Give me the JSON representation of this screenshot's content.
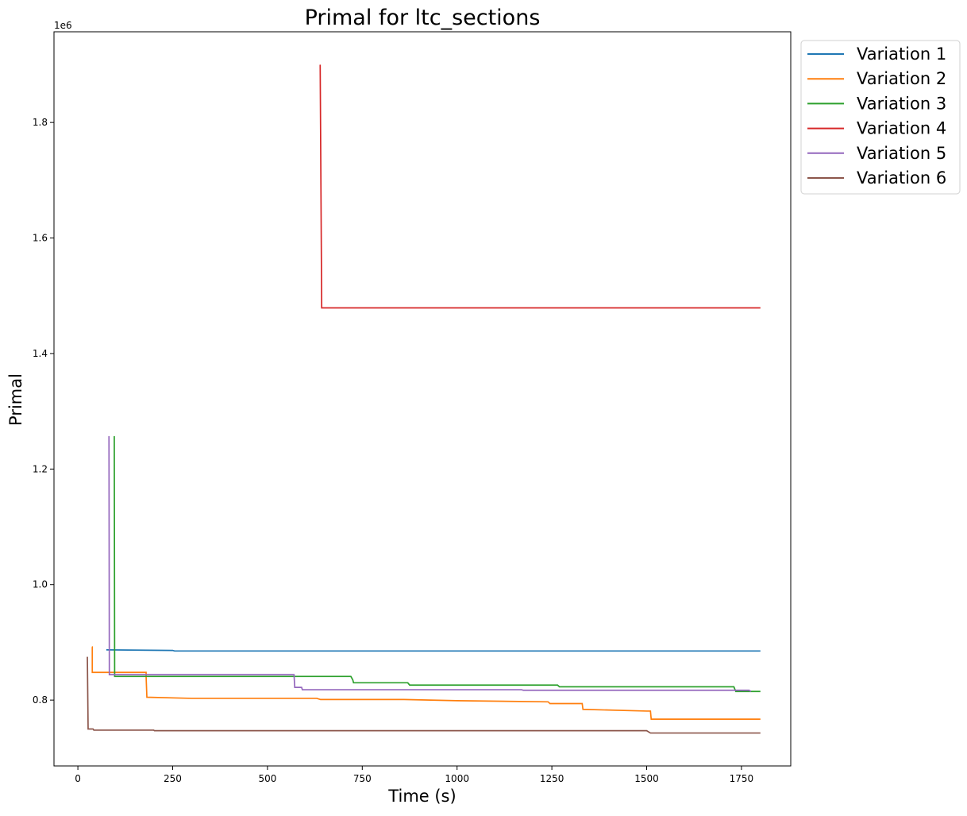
{
  "chart_data": {
    "type": "line",
    "title": "Primal for ltc_sections",
    "xlabel": "Time (s)",
    "ylabel": "Primal",
    "scale_label": "1e6",
    "xlim": [
      -63,
      1880
    ],
    "ylim": [
      0.686,
      1.957
    ],
    "x_ticks": [
      0,
      250,
      500,
      750,
      1000,
      1250,
      1500,
      1750
    ],
    "x_tick_labels": [
      "0",
      "250",
      "500",
      "750",
      "1000",
      "1250",
      "1500",
      "1750"
    ],
    "y_ticks": [
      0.8,
      1.0,
      1.2,
      1.4,
      1.6,
      1.8
    ],
    "y_tick_labels": [
      "0.8",
      "1.0",
      "1.2",
      "1.4",
      "1.6",
      "1.8"
    ],
    "grid": false,
    "legend_position": "outside-top-right",
    "series": [
      {
        "name": "Variation 1",
        "color": "#1f77b4",
        "x": [
          75,
          250,
          255,
          1800
        ],
        "y": [
          0.887,
          0.886,
          0.885,
          0.885
        ]
      },
      {
        "name": "Variation 2",
        "color": "#ff7f0e",
        "x": [
          37,
          38,
          38,
          180,
          180,
          182,
          300,
          630,
          640,
          860,
          1000,
          1240,
          1245,
          1330,
          1332,
          1500,
          1505,
          1510,
          1512,
          1800
        ],
        "y": [
          0.892,
          0.892,
          0.848,
          0.848,
          0.84,
          0.805,
          0.803,
          0.803,
          0.801,
          0.801,
          0.799,
          0.797,
          0.794,
          0.794,
          0.784,
          0.781,
          0.781,
          0.781,
          0.767,
          0.767
        ]
      },
      {
        "name": "Variation 3",
        "color": "#2ca02c",
        "x": [
          96,
          96,
          97,
          97,
          720,
          725,
          727,
          729,
          870,
          875,
          1265,
          1270,
          1730,
          1735,
          1800
        ],
        "y": [
          1.257,
          1.257,
          0.845,
          0.841,
          0.841,
          0.835,
          0.83,
          0.83,
          0.83,
          0.826,
          0.826,
          0.823,
          0.823,
          0.815,
          0.815
        ]
      },
      {
        "name": "Variation 4",
        "color": "#d62728",
        "x": [
          639,
          643,
          1800
        ],
        "y": [
          1.9,
          1.479,
          1.479
        ]
      },
      {
        "name": "Variation 5",
        "color": "#9467bd",
        "x": [
          82,
          82,
          83,
          83,
          570,
          572,
          590,
          592,
          1170,
          1175,
          1770,
          1775
        ],
        "y": [
          1.257,
          1.257,
          0.848,
          0.844,
          0.844,
          0.822,
          0.822,
          0.818,
          0.818,
          0.817,
          0.817,
          0.815
        ]
      },
      {
        "name": "Variation 6",
        "color": "#8c564b",
        "x": [
          25,
          27,
          28,
          40,
          42,
          200,
          202,
          1500,
          1510,
          1800
        ],
        "y": [
          0.875,
          0.75,
          0.75,
          0.75,
          0.748,
          0.748,
          0.747,
          0.747,
          0.743,
          0.743
        ]
      }
    ]
  }
}
